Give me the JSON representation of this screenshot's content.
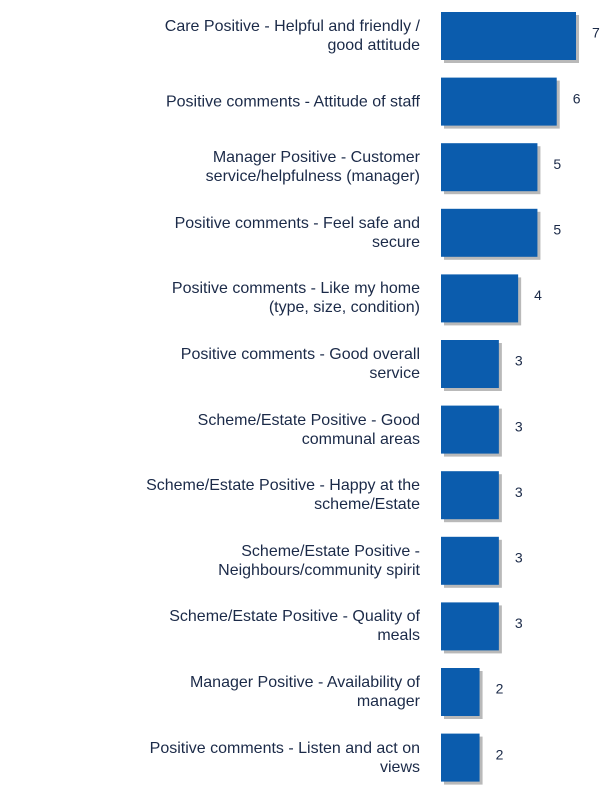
{
  "chart_data": {
    "type": "barh",
    "categories": [
      "Care Positive - Helpful and friendly /\ngood attitude",
      "Positive comments - Attitude of staff",
      "Manager Positive - Customer\nservice/helpfulness (manager)",
      "Positive comments - Feel safe and\nsecure",
      "Positive comments - Like my home\n(type, size, condition)",
      "Positive comments - Good overall\nservice",
      "Scheme/Estate Positive - Good\ncommunal areas",
      "Scheme/Estate Positive - Happy at the\nscheme/Estate",
      "Scheme/Estate Positive -\nNeighbours/community spirit",
      "Scheme/Estate Positive - Quality of\nmeals",
      "Manager Positive - Availability of\nmanager",
      "Positive comments - Listen and act on\nviews"
    ],
    "values": [
      7,
      6,
      5,
      5,
      4,
      3,
      3,
      3,
      3,
      3,
      2,
      2
    ],
    "color": "#0b5cad"
  }
}
